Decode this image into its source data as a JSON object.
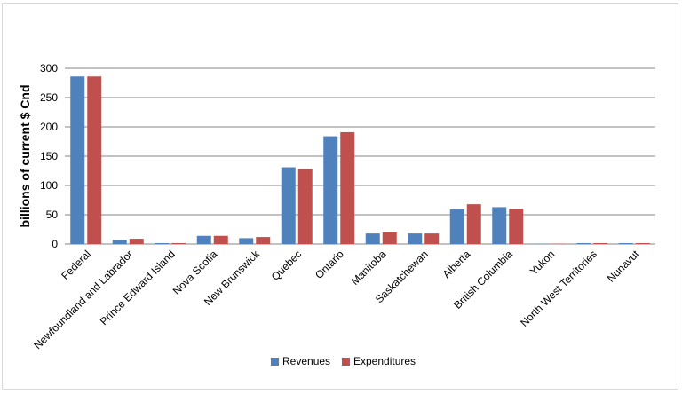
{
  "chart_data": {
    "type": "bar",
    "title": "",
    "xlabel": "",
    "ylabel": "billions of current $ Cnd",
    "ylim": [
      0,
      300
    ],
    "yticks": [
      0,
      50,
      100,
      150,
      200,
      250,
      300
    ],
    "grid": true,
    "legend_position": "bottom",
    "categories": [
      "Federal",
      "Newfoundland and Labrador",
      "Prince Edward Island",
      "Nova Scotia",
      "New Brunswick",
      "Quebec",
      "Ontario",
      "Manitoba",
      "Saskatchewan",
      "Alberta",
      "British Columbia",
      "Yukon",
      "North West Territories",
      "Nunavut"
    ],
    "series": [
      {
        "name": "Revenues",
        "color": "#4f81bd",
        "values": [
          286,
          7,
          1.5,
          14,
          10,
          131,
          184,
          18,
          18,
          59,
          63,
          0.5,
          1.5,
          1.5
        ]
      },
      {
        "name": "Expenditures",
        "color": "#c0504d",
        "values": [
          286,
          9,
          1.5,
          14,
          12,
          128,
          191,
          20,
          18,
          68,
          60,
          0.5,
          1.5,
          1.5
        ]
      }
    ]
  }
}
